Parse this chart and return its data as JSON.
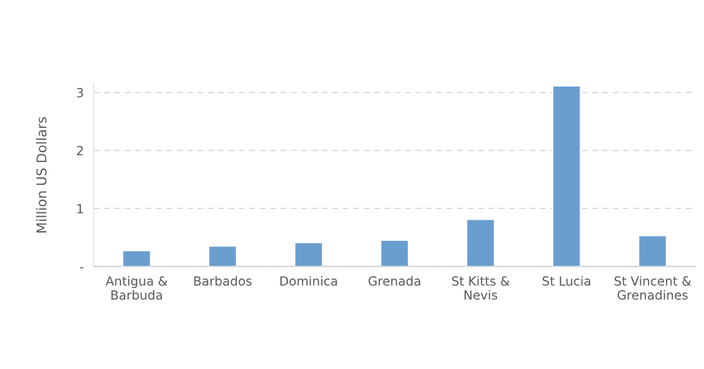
{
  "chart_data": {
    "type": "bar",
    "ylabel": "Million US Dollars",
    "categories": [
      "Antigua &\nBarbuda",
      "Barbados",
      "Dominica",
      "Grenada",
      "St Kitts &\nNevis",
      "St Lucia",
      "St Vincent &\nGrenadines"
    ],
    "values": [
      0.27,
      0.35,
      0.41,
      0.45,
      0.81,
      3.11,
      0.53
    ],
    "color": "#6a9ecf",
    "ylim": [
      0,
      3.15
    ],
    "yticks": [
      {
        "value": 0,
        "label": "-"
      },
      1,
      2,
      3
    ],
    "grid": "y",
    "legend": false
  }
}
